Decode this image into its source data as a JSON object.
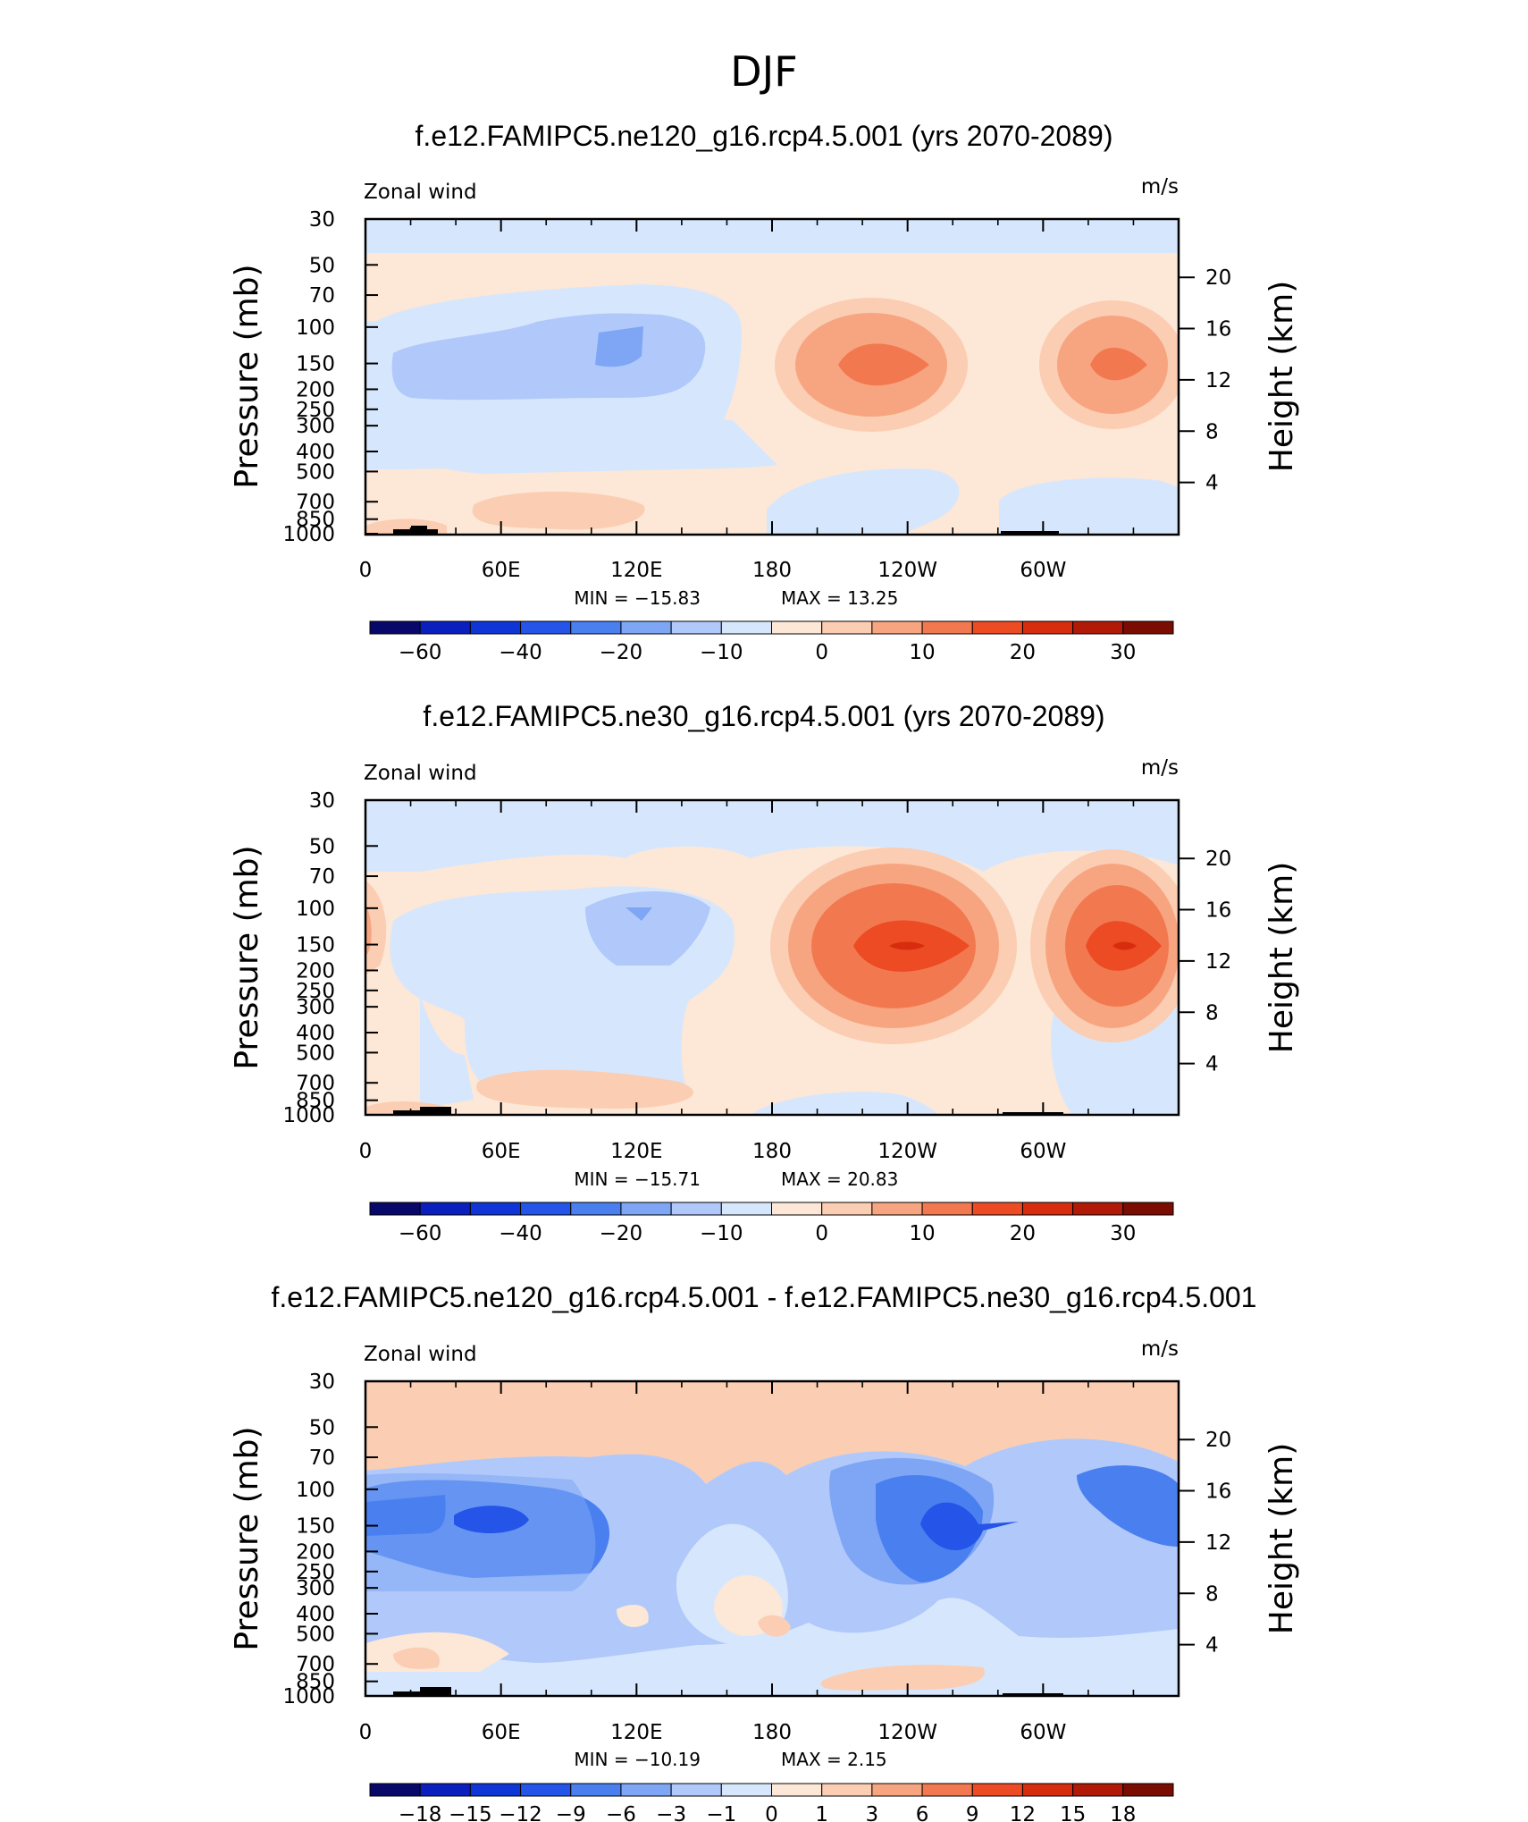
{
  "figure": {
    "title": "DJF"
  },
  "colors": {
    "ticks_wind": [
      "-60",
      "-40",
      "-20",
      "-10",
      "0",
      "10",
      "20",
      "30"
    ],
    "ticks_diff": [
      "-18",
      "-15",
      "-12",
      "-9",
      "-6",
      "-3",
      "-1",
      "0",
      "1",
      "3",
      "6",
      "9",
      "12",
      "15",
      "18"
    ],
    "palette": [
      "#08086b",
      "#0a1fbd",
      "#1035d6",
      "#2454e8",
      "#4a7ff0",
      "#7ea6f4",
      "#b1c9fa",
      "#d6e7fd",
      "#fde7d6",
      "#fbcdb2",
      "#f7a581",
      "#f2794f",
      "#ec4b24",
      "#d72d0e",
      "#b01a07",
      "#7b0c02"
    ]
  },
  "chart_data": [
    {
      "type": "heatmap",
      "title": "f.e12.FAMIPC5.ne120_g16.rcp4.5.001 (yrs 2070-2089)",
      "left_label": "Zonal wind",
      "right_label": "m/s",
      "ylabel": "Pressure (mb)",
      "ylabel_right": "Height (km)",
      "xlabel": "",
      "x_ticks": [
        "0",
        "60E",
        "120E",
        "180",
        "120W",
        "60W"
      ],
      "y_ticks": [
        "30",
        "50",
        "70",
        "100",
        "150",
        "200",
        "250",
        "300",
        "400",
        "500",
        "700",
        "850",
        "1000"
      ],
      "y_ticks_right": [
        "20",
        "16",
        "12",
        "8",
        "4"
      ],
      "min_text": "MIN = −15.83",
      "max_text": "MAX = 13.25",
      "min": -15.83,
      "max": 13.25,
      "colorbar_levels": [
        -70,
        -60,
        -50,
        -40,
        -30,
        -20,
        -15,
        -10,
        -5,
        0,
        5,
        10,
        15,
        20,
        25,
        30,
        35
      ]
    },
    {
      "type": "heatmap",
      "title": "f.e12.FAMIPC5.ne30_g16.rcp4.5.001 (yrs 2070-2089)",
      "left_label": "Zonal wind",
      "right_label": "m/s",
      "ylabel": "Pressure (mb)",
      "ylabel_right": "Height (km)",
      "xlabel": "",
      "x_ticks": [
        "0",
        "60E",
        "120E",
        "180",
        "120W",
        "60W"
      ],
      "y_ticks": [
        "30",
        "50",
        "70",
        "100",
        "150",
        "200",
        "250",
        "300",
        "400",
        "500",
        "700",
        "850",
        "1000"
      ],
      "y_ticks_right": [
        "20",
        "16",
        "12",
        "8",
        "4"
      ],
      "min_text": "MIN = −15.71",
      "max_text": "MAX = 20.83",
      "min": -15.71,
      "max": 20.83,
      "colorbar_levels": [
        -70,
        -60,
        -50,
        -40,
        -30,
        -20,
        -15,
        -10,
        -5,
        0,
        5,
        10,
        15,
        20,
        25,
        30,
        35
      ]
    },
    {
      "type": "heatmap",
      "title": "f.e12.FAMIPC5.ne120_g16.rcp4.5.001 - f.e12.FAMIPC5.ne30_g16.rcp4.5.001",
      "left_label": "Zonal wind",
      "right_label": "m/s",
      "ylabel": "Pressure (mb)",
      "ylabel_right": "Height (km)",
      "xlabel": "",
      "x_ticks": [
        "0",
        "60E",
        "120E",
        "180",
        "120W",
        "60W"
      ],
      "y_ticks": [
        "30",
        "50",
        "70",
        "100",
        "150",
        "200",
        "250",
        "300",
        "400",
        "500",
        "700",
        "850",
        "1000"
      ],
      "y_ticks_right": [
        "20",
        "16",
        "12",
        "8",
        "4"
      ],
      "min_text": "MIN = −10.19",
      "max_text": "MAX = 2.15",
      "min": -10.19,
      "max": 2.15,
      "colorbar_levels": [
        -18,
        -15,
        -12,
        -9,
        -6,
        -3,
        -1,
        0,
        1,
        3,
        6,
        9,
        12,
        15,
        18
      ]
    }
  ]
}
